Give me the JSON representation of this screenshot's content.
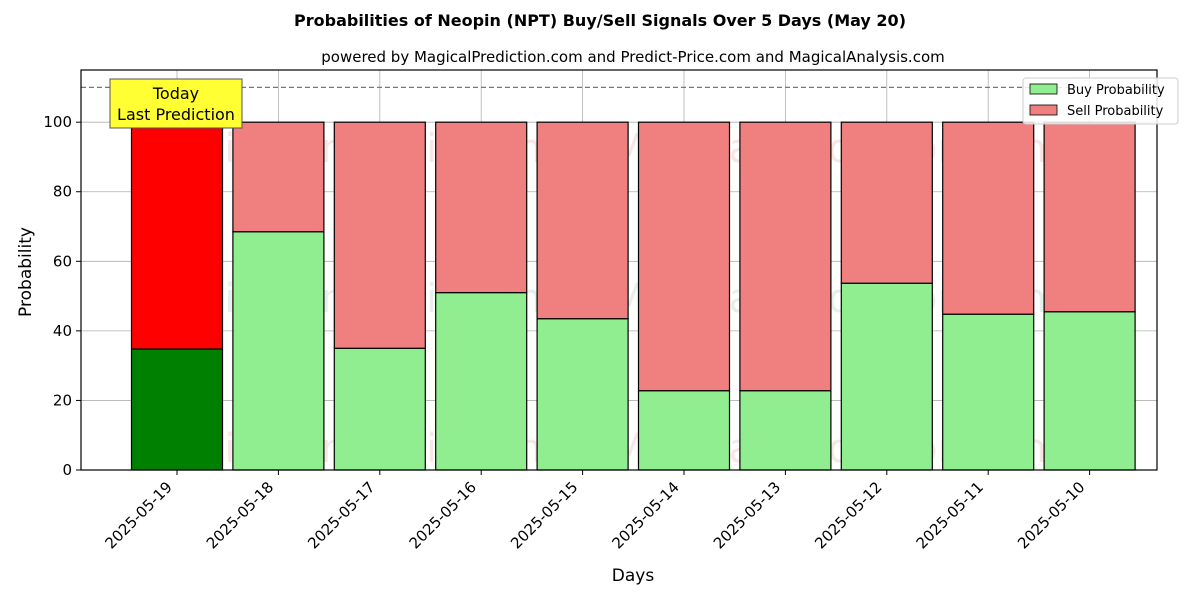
{
  "chart_data": {
    "type": "bar",
    "stacked": true,
    "title": "Probabilities of Neopin (NPT) Buy/Sell Signals Over 5 Days (May 20)",
    "subtitle": "powered by MagicalPrediction.com and Predict-Price.com and MagicalAnalysis.com",
    "xlabel": "Days",
    "ylabel": "Probability",
    "ylim": [
      0,
      115
    ],
    "yticks": [
      0,
      20,
      40,
      60,
      80,
      100
    ],
    "grid": true,
    "legend_position": "top-right",
    "reference_line": 110,
    "categories": [
      "2025-05-19",
      "2025-05-18",
      "2025-05-17",
      "2025-05-16",
      "2025-05-15",
      "2025-05-14",
      "2025-05-13",
      "2025-05-12",
      "2025-05-11",
      "2025-05-10"
    ],
    "series": [
      {
        "name": "Buy Probability",
        "values": [
          34.8,
          68.5,
          35.0,
          51.0,
          43.5,
          22.8,
          22.8,
          53.7,
          44.8,
          45.5
        ],
        "color": "#90ee90",
        "highlight_color": "#008000"
      },
      {
        "name": "Sell Probability",
        "values": [
          65.2,
          31.5,
          65.0,
          49.0,
          56.5,
          77.2,
          77.2,
          46.3,
          55.2,
          54.5
        ],
        "color": "#f08080",
        "highlight_color": "#ff0000"
      }
    ],
    "annotation": {
      "lines": [
        "Today",
        "Last Prediction"
      ],
      "background": "#ffff33"
    },
    "watermarks": [
      "MagicalAnalysis.com",
      "MagicalPrediction.com"
    ]
  }
}
